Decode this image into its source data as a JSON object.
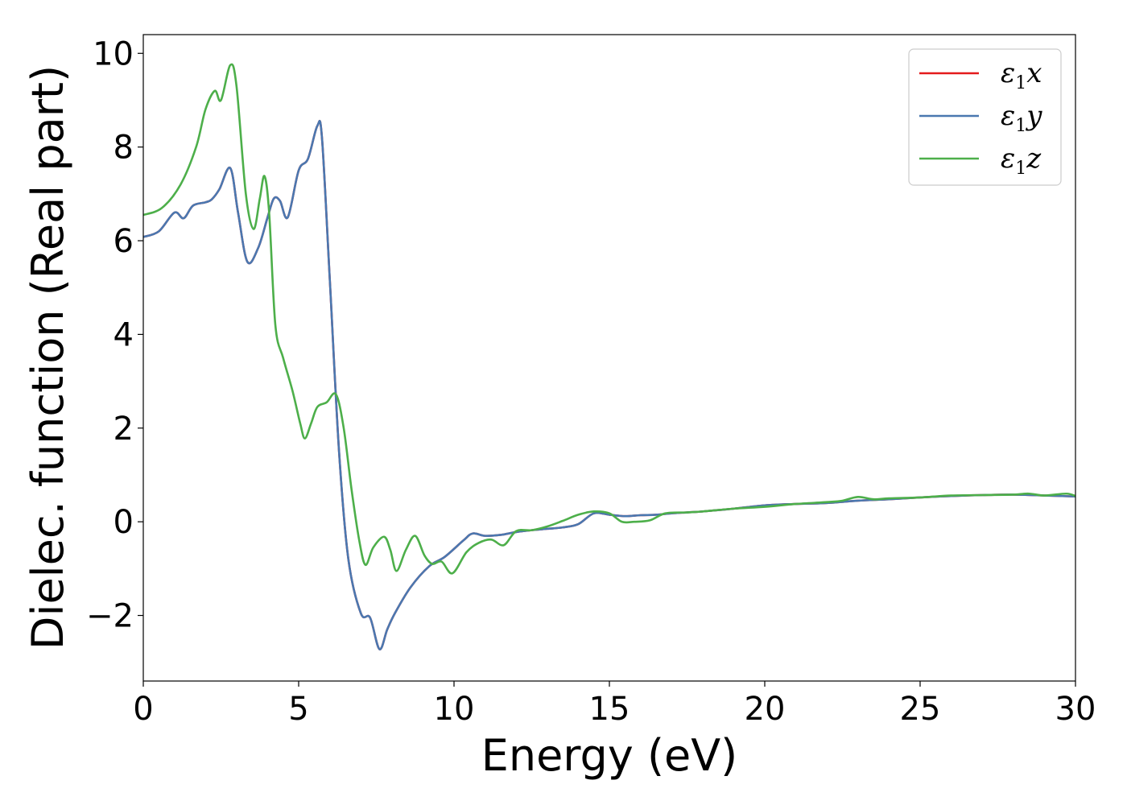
{
  "chart_data": {
    "type": "line",
    "title": "",
    "xlabel": "Energy (eV)",
    "ylabel": "Dielec. function (Real part)",
    "xlim": [
      0,
      30
    ],
    "ylim": [
      -3.4,
      10.4
    ],
    "xticks": [
      0,
      5,
      10,
      15,
      20,
      25,
      30
    ],
    "xtick_labels": [
      "0",
      "5",
      "10",
      "15",
      "20",
      "25",
      "30"
    ],
    "yticks": [
      -2,
      0,
      2,
      4,
      6,
      8,
      10
    ],
    "ytick_labels": [
      "−2",
      "0",
      "2",
      "4",
      "6",
      "8",
      "10"
    ],
    "grid": false,
    "legend": "top-right",
    "series": [
      {
        "name": "ε1x",
        "legend": {
          "base": "ε",
          "sub": "1",
          "suffix": "x"
        },
        "color": "#e41a1c",
        "points": [
          [
            0,
            6.08
          ],
          [
            0.5,
            6.2
          ],
          [
            1.0,
            6.6
          ],
          [
            1.3,
            6.48
          ],
          [
            1.6,
            6.75
          ],
          [
            2.0,
            6.82
          ],
          [
            2.2,
            6.88
          ],
          [
            2.45,
            7.1
          ],
          [
            2.8,
            7.55
          ],
          [
            3.05,
            6.6
          ],
          [
            3.35,
            5.55
          ],
          [
            3.7,
            5.85
          ],
          [
            4.0,
            6.5
          ],
          [
            4.2,
            6.9
          ],
          [
            4.4,
            6.85
          ],
          [
            4.65,
            6.5
          ],
          [
            5.0,
            7.5
          ],
          [
            5.3,
            7.75
          ],
          [
            5.6,
            8.45
          ],
          [
            5.75,
            8.2
          ],
          [
            6.0,
            5.2
          ],
          [
            6.3,
            1.5
          ],
          [
            6.6,
            -0.8
          ],
          [
            7.0,
            -1.95
          ],
          [
            7.3,
            -2.05
          ],
          [
            7.6,
            -2.72
          ],
          [
            7.85,
            -2.3
          ],
          [
            8.1,
            -1.95
          ],
          [
            8.6,
            -1.4
          ],
          [
            9.2,
            -0.95
          ],
          [
            9.7,
            -0.75
          ],
          [
            10.3,
            -0.4
          ],
          [
            10.6,
            -0.25
          ],
          [
            11.0,
            -0.3
          ],
          [
            11.5,
            -0.28
          ],
          [
            12.0,
            -0.22
          ],
          [
            12.5,
            -0.18
          ],
          [
            13.0,
            -0.15
          ],
          [
            13.5,
            -0.12
          ],
          [
            14.0,
            -0.05
          ],
          [
            14.5,
            0.18
          ],
          [
            15.0,
            0.15
          ],
          [
            15.5,
            0.12
          ],
          [
            16.0,
            0.14
          ],
          [
            16.5,
            0.15
          ],
          [
            17.0,
            0.18
          ],
          [
            17.5,
            0.2
          ],
          [
            18.0,
            0.22
          ],
          [
            19.0,
            0.28
          ],
          [
            20.0,
            0.35
          ],
          [
            21.0,
            0.38
          ],
          [
            22.0,
            0.4
          ],
          [
            23.0,
            0.45
          ],
          [
            24.0,
            0.48
          ],
          [
            25.0,
            0.52
          ],
          [
            26.0,
            0.55
          ],
          [
            27.0,
            0.57
          ],
          [
            28.0,
            0.58
          ],
          [
            29.0,
            0.56
          ],
          [
            30.0,
            0.54
          ]
        ]
      },
      {
        "name": "ε1y",
        "legend": {
          "base": "ε",
          "sub": "1",
          "suffix": "y"
        },
        "color": "#4a78b0",
        "points": [
          [
            0,
            6.08
          ],
          [
            0.5,
            6.2
          ],
          [
            1.0,
            6.6
          ],
          [
            1.3,
            6.48
          ],
          [
            1.6,
            6.75
          ],
          [
            2.0,
            6.82
          ],
          [
            2.2,
            6.88
          ],
          [
            2.45,
            7.1
          ],
          [
            2.8,
            7.55
          ],
          [
            3.05,
            6.6
          ],
          [
            3.35,
            5.55
          ],
          [
            3.7,
            5.85
          ],
          [
            4.0,
            6.5
          ],
          [
            4.2,
            6.9
          ],
          [
            4.4,
            6.85
          ],
          [
            4.65,
            6.5
          ],
          [
            5.0,
            7.5
          ],
          [
            5.3,
            7.75
          ],
          [
            5.6,
            8.45
          ],
          [
            5.75,
            8.2
          ],
          [
            6.0,
            5.2
          ],
          [
            6.3,
            1.5
          ],
          [
            6.6,
            -0.8
          ],
          [
            7.0,
            -1.95
          ],
          [
            7.3,
            -2.05
          ],
          [
            7.6,
            -2.72
          ],
          [
            7.85,
            -2.3
          ],
          [
            8.1,
            -1.95
          ],
          [
            8.6,
            -1.4
          ],
          [
            9.2,
            -0.95
          ],
          [
            9.7,
            -0.75
          ],
          [
            10.3,
            -0.4
          ],
          [
            10.6,
            -0.25
          ],
          [
            11.0,
            -0.3
          ],
          [
            11.5,
            -0.28
          ],
          [
            12.0,
            -0.22
          ],
          [
            12.5,
            -0.18
          ],
          [
            13.0,
            -0.15
          ],
          [
            13.5,
            -0.12
          ],
          [
            14.0,
            -0.05
          ],
          [
            14.5,
            0.18
          ],
          [
            15.0,
            0.15
          ],
          [
            15.5,
            0.12
          ],
          [
            16.0,
            0.14
          ],
          [
            16.5,
            0.15
          ],
          [
            17.0,
            0.18
          ],
          [
            17.5,
            0.2
          ],
          [
            18.0,
            0.22
          ],
          [
            19.0,
            0.28
          ],
          [
            20.0,
            0.35
          ],
          [
            21.0,
            0.38
          ],
          [
            22.0,
            0.4
          ],
          [
            23.0,
            0.45
          ],
          [
            24.0,
            0.48
          ],
          [
            25.0,
            0.52
          ],
          [
            26.0,
            0.55
          ],
          [
            27.0,
            0.57
          ],
          [
            28.0,
            0.58
          ],
          [
            29.0,
            0.56
          ],
          [
            30.0,
            0.54
          ]
        ]
      },
      {
        "name": "ε1z",
        "legend": {
          "base": "ε",
          "sub": "1",
          "suffix": "z"
        },
        "color": "#4daf4a",
        "points": [
          [
            0,
            6.55
          ],
          [
            0.6,
            6.7
          ],
          [
            1.2,
            7.2
          ],
          [
            1.7,
            8.0
          ],
          [
            2.0,
            8.8
          ],
          [
            2.3,
            9.2
          ],
          [
            2.5,
            9.0
          ],
          [
            2.8,
            9.75
          ],
          [
            3.0,
            9.3
          ],
          [
            3.3,
            7.0
          ],
          [
            3.55,
            6.25
          ],
          [
            3.75,
            6.9
          ],
          [
            3.9,
            7.38
          ],
          [
            4.05,
            6.6
          ],
          [
            4.25,
            4.2
          ],
          [
            4.5,
            3.5
          ],
          [
            4.8,
            2.8
          ],
          [
            5.05,
            2.1
          ],
          [
            5.2,
            1.78
          ],
          [
            5.4,
            2.1
          ],
          [
            5.6,
            2.45
          ],
          [
            5.9,
            2.55
          ],
          [
            6.2,
            2.72
          ],
          [
            6.45,
            2.0
          ],
          [
            6.7,
            0.7
          ],
          [
            6.95,
            -0.4
          ],
          [
            7.15,
            -0.92
          ],
          [
            7.4,
            -0.55
          ],
          [
            7.75,
            -0.32
          ],
          [
            7.95,
            -0.6
          ],
          [
            8.15,
            -1.05
          ],
          [
            8.45,
            -0.6
          ],
          [
            8.75,
            -0.3
          ],
          [
            9.05,
            -0.72
          ],
          [
            9.3,
            -0.9
          ],
          [
            9.6,
            -0.85
          ],
          [
            9.95,
            -1.1
          ],
          [
            10.4,
            -0.65
          ],
          [
            10.8,
            -0.45
          ],
          [
            11.2,
            -0.38
          ],
          [
            11.6,
            -0.5
          ],
          [
            12.0,
            -0.2
          ],
          [
            12.5,
            -0.18
          ],
          [
            13.0,
            -0.1
          ],
          [
            13.5,
            0.02
          ],
          [
            14.0,
            0.15
          ],
          [
            14.5,
            0.22
          ],
          [
            15.0,
            0.18
          ],
          [
            15.4,
            0.0
          ],
          [
            15.8,
            0.0
          ],
          [
            16.3,
            0.03
          ],
          [
            16.8,
            0.18
          ],
          [
            17.5,
            0.2
          ],
          [
            18.0,
            0.22
          ],
          [
            19.0,
            0.28
          ],
          [
            20.0,
            0.32
          ],
          [
            21.0,
            0.38
          ],
          [
            22.0,
            0.42
          ],
          [
            22.5,
            0.45
          ],
          [
            23.0,
            0.53
          ],
          [
            23.5,
            0.48
          ],
          [
            24.0,
            0.5
          ],
          [
            25.0,
            0.52
          ],
          [
            26.0,
            0.56
          ],
          [
            27.0,
            0.57
          ],
          [
            28.0,
            0.58
          ],
          [
            28.5,
            0.6
          ],
          [
            29.0,
            0.56
          ],
          [
            29.7,
            0.6
          ],
          [
            30.0,
            0.55
          ]
        ]
      }
    ]
  }
}
